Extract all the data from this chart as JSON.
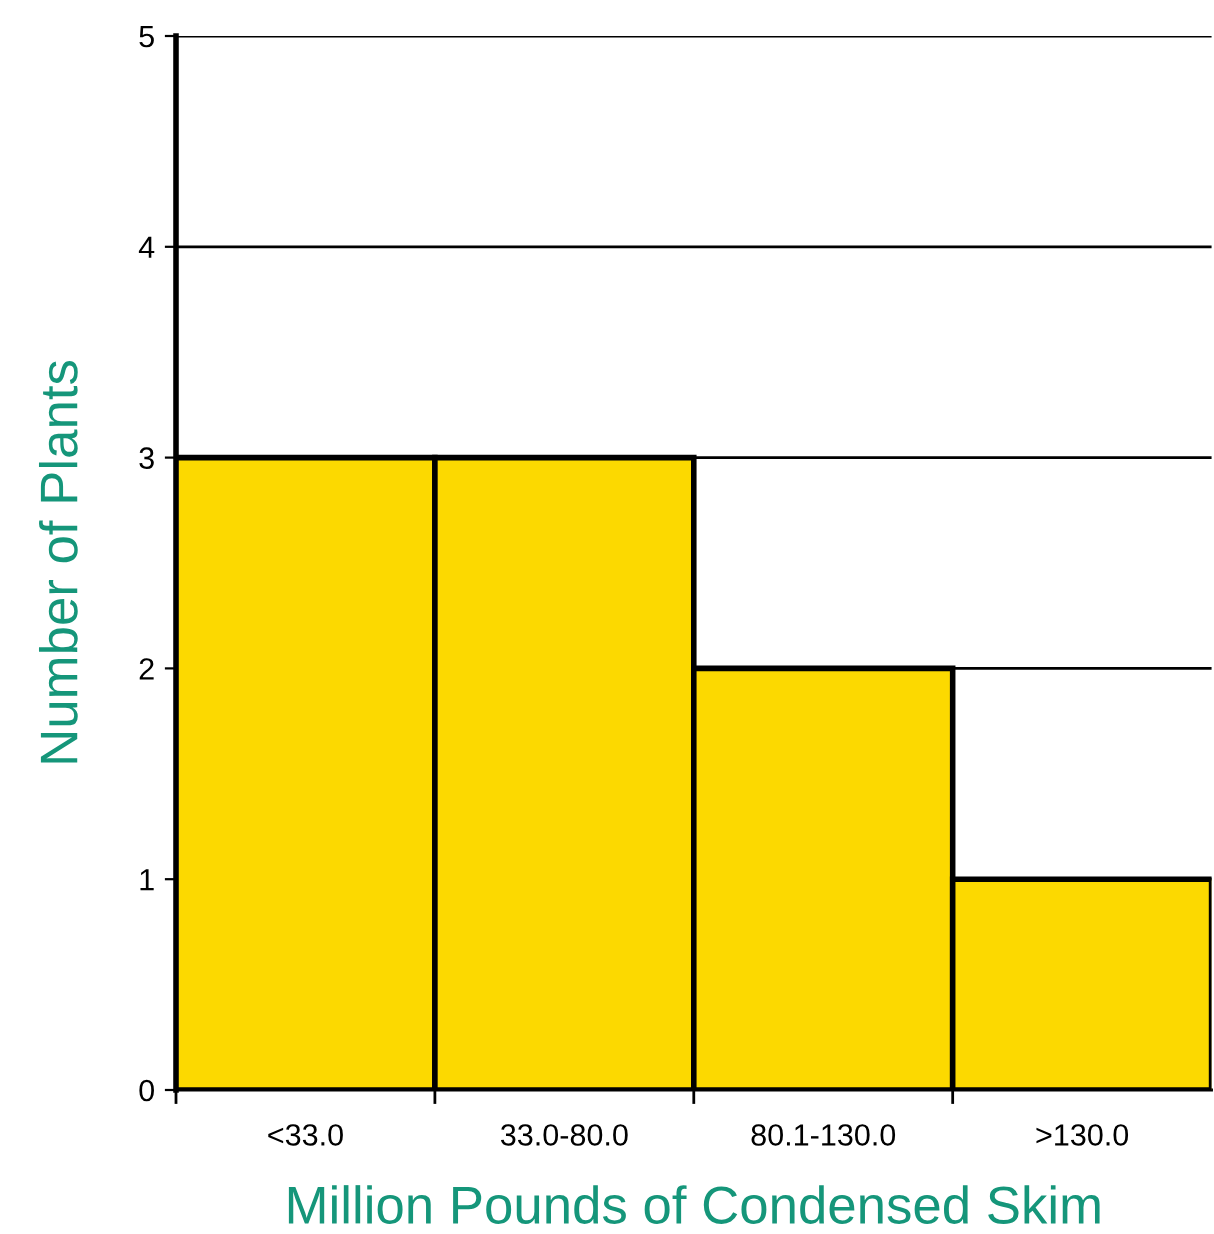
{
  "chart_data": {
    "type": "bar",
    "xlabel": "Million Pounds of Condensed Skim",
    "ylabel": "Number of Plants",
    "categories": [
      "<33.0",
      "33.0-80.0",
      "80.1-130.0",
      ">130.0"
    ],
    "values": [
      3,
      3,
      2,
      1
    ],
    "color": "#fcd900",
    "ylim": [
      0,
      5
    ],
    "yticks": [
      0,
      1,
      2,
      3,
      4,
      5
    ],
    "grid": "y"
  }
}
